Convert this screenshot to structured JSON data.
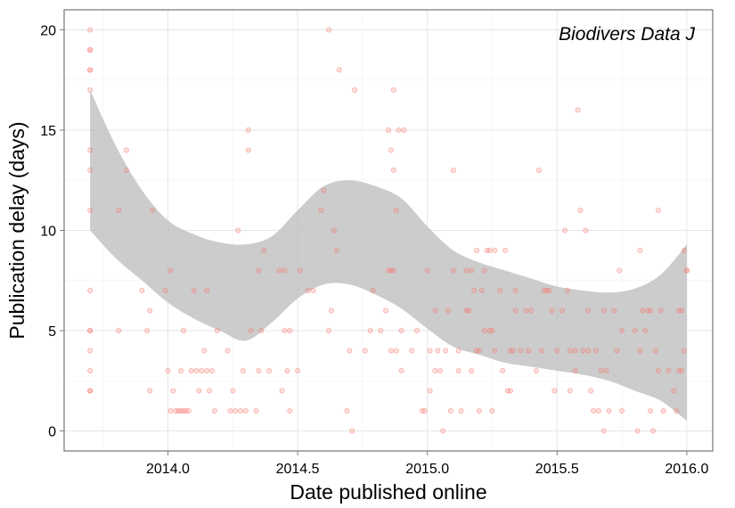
{
  "chart_data": {
    "type": "scatter",
    "annotation": "Biodivers Data J",
    "xlabel": "Date published online",
    "ylabel": "Publication delay (days)",
    "xlim": [
      2013.6,
      2016.1
    ],
    "ylim": [
      -1,
      21
    ],
    "x_ticks": [
      2014.0,
      2014.5,
      2015.0,
      2015.5,
      2016.0
    ],
    "x_tick_labels": [
      "2014.0",
      "2014.5",
      "2015.0",
      "2015.5",
      "2016.0"
    ],
    "y_ticks": [
      0,
      5,
      10,
      15,
      20
    ],
    "y_tick_labels": [
      "0",
      "5",
      "10",
      "15",
      "20"
    ],
    "grid": true,
    "point_color": "#f8766d",
    "band_color": "#bfbfbf",
    "confidence_band": {
      "x": [
        2013.7,
        2013.8,
        2013.9,
        2014.0,
        2014.1,
        2014.2,
        2014.3,
        2014.4,
        2014.5,
        2014.6,
        2014.7,
        2014.8,
        2014.9,
        2015.0,
        2015.1,
        2015.2,
        2015.3,
        2015.4,
        2015.5,
        2015.6,
        2015.7,
        2015.8,
        2015.9,
        2016.0
      ],
      "upper": [
        17.0,
        14.2,
        12.0,
        10.5,
        9.8,
        9.4,
        9.3,
        9.7,
        11.0,
        12.2,
        12.5,
        12.2,
        11.6,
        10.2,
        9.0,
        8.4,
        8.0,
        7.6,
        7.2,
        7.0,
        6.9,
        7.1,
        7.8,
        9.3
      ],
      "lower": [
        10.0,
        8.6,
        7.5,
        6.4,
        5.6,
        5.0,
        4.5,
        5.4,
        6.6,
        7.3,
        7.3,
        6.8,
        6.1,
        5.1,
        4.2,
        3.8,
        3.4,
        3.2,
        3.0,
        2.8,
        2.5,
        2.0,
        1.5,
        0.5
      ]
    },
    "series": [
      {
        "points": [
          [
            2013.7,
            20
          ],
          [
            2013.7,
            19
          ],
          [
            2013.7,
            19
          ],
          [
            2013.7,
            18
          ],
          [
            2013.7,
            18
          ],
          [
            2013.7,
            17
          ],
          [
            2013.7,
            14
          ],
          [
            2013.7,
            13
          ],
          [
            2013.7,
            11
          ],
          [
            2013.7,
            7
          ],
          [
            2013.7,
            5
          ],
          [
            2013.7,
            5
          ],
          [
            2013.7,
            4
          ],
          [
            2013.7,
            3
          ],
          [
            2013.7,
            2
          ],
          [
            2013.7,
            2
          ],
          [
            2013.81,
            11
          ],
          [
            2013.81,
            5
          ],
          [
            2013.84,
            14
          ],
          [
            2013.84,
            13
          ],
          [
            2013.9,
            7
          ],
          [
            2013.92,
            5
          ],
          [
            2013.93,
            6
          ],
          [
            2013.93,
            2
          ],
          [
            2013.94,
            11
          ],
          [
            2013.99,
            7
          ],
          [
            2014.0,
            3
          ],
          [
            2014.01,
            8
          ],
          [
            2014.01,
            1
          ],
          [
            2014.02,
            2
          ],
          [
            2014.03,
            1
          ],
          [
            2014.04,
            1
          ],
          [
            2014.05,
            3
          ],
          [
            2014.05,
            1
          ],
          [
            2014.06,
            5
          ],
          [
            2014.06,
            1
          ],
          [
            2014.07,
            1
          ],
          [
            2014.08,
            1
          ],
          [
            2014.09,
            3
          ],
          [
            2014.1,
            7
          ],
          [
            2014.11,
            3
          ],
          [
            2014.12,
            2
          ],
          [
            2014.13,
            3
          ],
          [
            2014.14,
            4
          ],
          [
            2014.15,
            3
          ],
          [
            2014.15,
            7
          ],
          [
            2014.16,
            2
          ],
          [
            2014.17,
            3
          ],
          [
            2014.18,
            1
          ],
          [
            2014.19,
            5
          ],
          [
            2014.23,
            4
          ],
          [
            2014.24,
            1
          ],
          [
            2014.25,
            2
          ],
          [
            2014.26,
            1
          ],
          [
            2014.27,
            10
          ],
          [
            2014.28,
            1
          ],
          [
            2014.29,
            3
          ],
          [
            2014.3,
            1
          ],
          [
            2014.31,
            15
          ],
          [
            2014.31,
            14
          ],
          [
            2014.32,
            5
          ],
          [
            2014.34,
            1
          ],
          [
            2014.35,
            8
          ],
          [
            2014.35,
            3
          ],
          [
            2014.36,
            5
          ],
          [
            2014.37,
            9
          ],
          [
            2014.39,
            3
          ],
          [
            2014.43,
            8
          ],
          [
            2014.44,
            2
          ],
          [
            2014.45,
            8
          ],
          [
            2014.45,
            5
          ],
          [
            2014.46,
            3
          ],
          [
            2014.47,
            5
          ],
          [
            2014.47,
            1
          ],
          [
            2014.5,
            3
          ],
          [
            2014.51,
            8
          ],
          [
            2014.54,
            7
          ],
          [
            2014.56,
            7
          ],
          [
            2014.59,
            11
          ],
          [
            2014.6,
            12
          ],
          [
            2014.62,
            20
          ],
          [
            2014.62,
            5
          ],
          [
            2014.63,
            6
          ],
          [
            2014.64,
            10
          ],
          [
            2014.65,
            9
          ],
          [
            2014.66,
            18
          ],
          [
            2014.69,
            1
          ],
          [
            2014.7,
            4
          ],
          [
            2014.71,
            0
          ],
          [
            2014.72,
            17
          ],
          [
            2014.76,
            4
          ],
          [
            2014.78,
            5
          ],
          [
            2014.79,
            7
          ],
          [
            2014.82,
            5
          ],
          [
            2014.84,
            6
          ],
          [
            2014.85,
            8
          ],
          [
            2014.85,
            15
          ],
          [
            2014.86,
            4
          ],
          [
            2014.86,
            8
          ],
          [
            2014.86,
            14
          ],
          [
            2014.87,
            8
          ],
          [
            2014.87,
            13
          ],
          [
            2014.87,
            17
          ],
          [
            2014.88,
            4
          ],
          [
            2014.88,
            11
          ],
          [
            2014.89,
            15
          ],
          [
            2014.9,
            3
          ],
          [
            2014.9,
            5
          ],
          [
            2014.91,
            15
          ],
          [
            2014.94,
            4
          ],
          [
            2014.96,
            5
          ],
          [
            2014.98,
            1
          ],
          [
            2014.99,
            1
          ],
          [
            2015.0,
            8
          ],
          [
            2015.01,
            4
          ],
          [
            2015.01,
            2
          ],
          [
            2015.03,
            6
          ],
          [
            2015.03,
            3
          ],
          [
            2015.04,
            4
          ],
          [
            2015.05,
            3
          ],
          [
            2015.06,
            0
          ],
          [
            2015.07,
            4
          ],
          [
            2015.08,
            6
          ],
          [
            2015.09,
            1
          ],
          [
            2015.1,
            8
          ],
          [
            2015.1,
            13
          ],
          [
            2015.12,
            4
          ],
          [
            2015.12,
            3
          ],
          [
            2015.13,
            1
          ],
          [
            2015.15,
            8
          ],
          [
            2015.15,
            6
          ],
          [
            2015.16,
            6
          ],
          [
            2015.17,
            8
          ],
          [
            2015.17,
            3
          ],
          [
            2015.18,
            7
          ],
          [
            2015.19,
            9
          ],
          [
            2015.19,
            4
          ],
          [
            2015.2,
            4
          ],
          [
            2015.2,
            1
          ],
          [
            2015.21,
            7
          ],
          [
            2015.22,
            8
          ],
          [
            2015.22,
            5
          ],
          [
            2015.23,
            9
          ],
          [
            2015.24,
            9
          ],
          [
            2015.24,
            5
          ],
          [
            2015.25,
            5
          ],
          [
            2015.25,
            1
          ],
          [
            2015.26,
            4
          ],
          [
            2015.26,
            9
          ],
          [
            2015.28,
            7
          ],
          [
            2015.29,
            3
          ],
          [
            2015.3,
            9
          ],
          [
            2015.31,
            2
          ],
          [
            2015.32,
            2
          ],
          [
            2015.32,
            4
          ],
          [
            2015.33,
            4
          ],
          [
            2015.34,
            6
          ],
          [
            2015.34,
            7
          ],
          [
            2015.36,
            4
          ],
          [
            2015.38,
            6
          ],
          [
            2015.39,
            4
          ],
          [
            2015.4,
            6
          ],
          [
            2015.42,
            3
          ],
          [
            2015.43,
            13
          ],
          [
            2015.44,
            4
          ],
          [
            2015.45,
            7
          ],
          [
            2015.46,
            7
          ],
          [
            2015.47,
            7
          ],
          [
            2015.48,
            6
          ],
          [
            2015.49,
            2
          ],
          [
            2015.5,
            4
          ],
          [
            2015.52,
            6
          ],
          [
            2015.53,
            10
          ],
          [
            2015.54,
            7
          ],
          [
            2015.55,
            4
          ],
          [
            2015.55,
            2
          ],
          [
            2015.57,
            4
          ],
          [
            2015.57,
            3
          ],
          [
            2015.58,
            16
          ],
          [
            2015.59,
            11
          ],
          [
            2015.6,
            4
          ],
          [
            2015.61,
            10
          ],
          [
            2015.62,
            6
          ],
          [
            2015.62,
            4
          ],
          [
            2015.63,
            2
          ],
          [
            2015.64,
            1
          ],
          [
            2015.65,
            4
          ],
          [
            2015.66,
            1
          ],
          [
            2015.67,
            3
          ],
          [
            2015.68,
            6
          ],
          [
            2015.68,
            0
          ],
          [
            2015.69,
            3
          ],
          [
            2015.7,
            1
          ],
          [
            2015.72,
            6
          ],
          [
            2015.73,
            4
          ],
          [
            2015.74,
            8
          ],
          [
            2015.75,
            5
          ],
          [
            2015.75,
            1
          ],
          [
            2015.8,
            5
          ],
          [
            2015.81,
            0
          ],
          [
            2015.82,
            9
          ],
          [
            2015.82,
            4
          ],
          [
            2015.83,
            6
          ],
          [
            2015.84,
            5
          ],
          [
            2015.85,
            6
          ],
          [
            2015.86,
            6
          ],
          [
            2015.86,
            1
          ],
          [
            2015.87,
            0
          ],
          [
            2015.88,
            4
          ],
          [
            2015.89,
            11
          ],
          [
            2015.89,
            3
          ],
          [
            2015.9,
            6
          ],
          [
            2015.91,
            1
          ],
          [
            2015.93,
            3
          ],
          [
            2015.95,
            2
          ],
          [
            2015.96,
            1
          ],
          [
            2015.97,
            6
          ],
          [
            2015.97,
            3
          ],
          [
            2015.98,
            6
          ],
          [
            2015.98,
            3
          ],
          [
            2015.99,
            4
          ],
          [
            2015.99,
            9
          ],
          [
            2016.0,
            8
          ],
          [
            2016.0,
            8
          ]
        ]
      }
    ]
  }
}
